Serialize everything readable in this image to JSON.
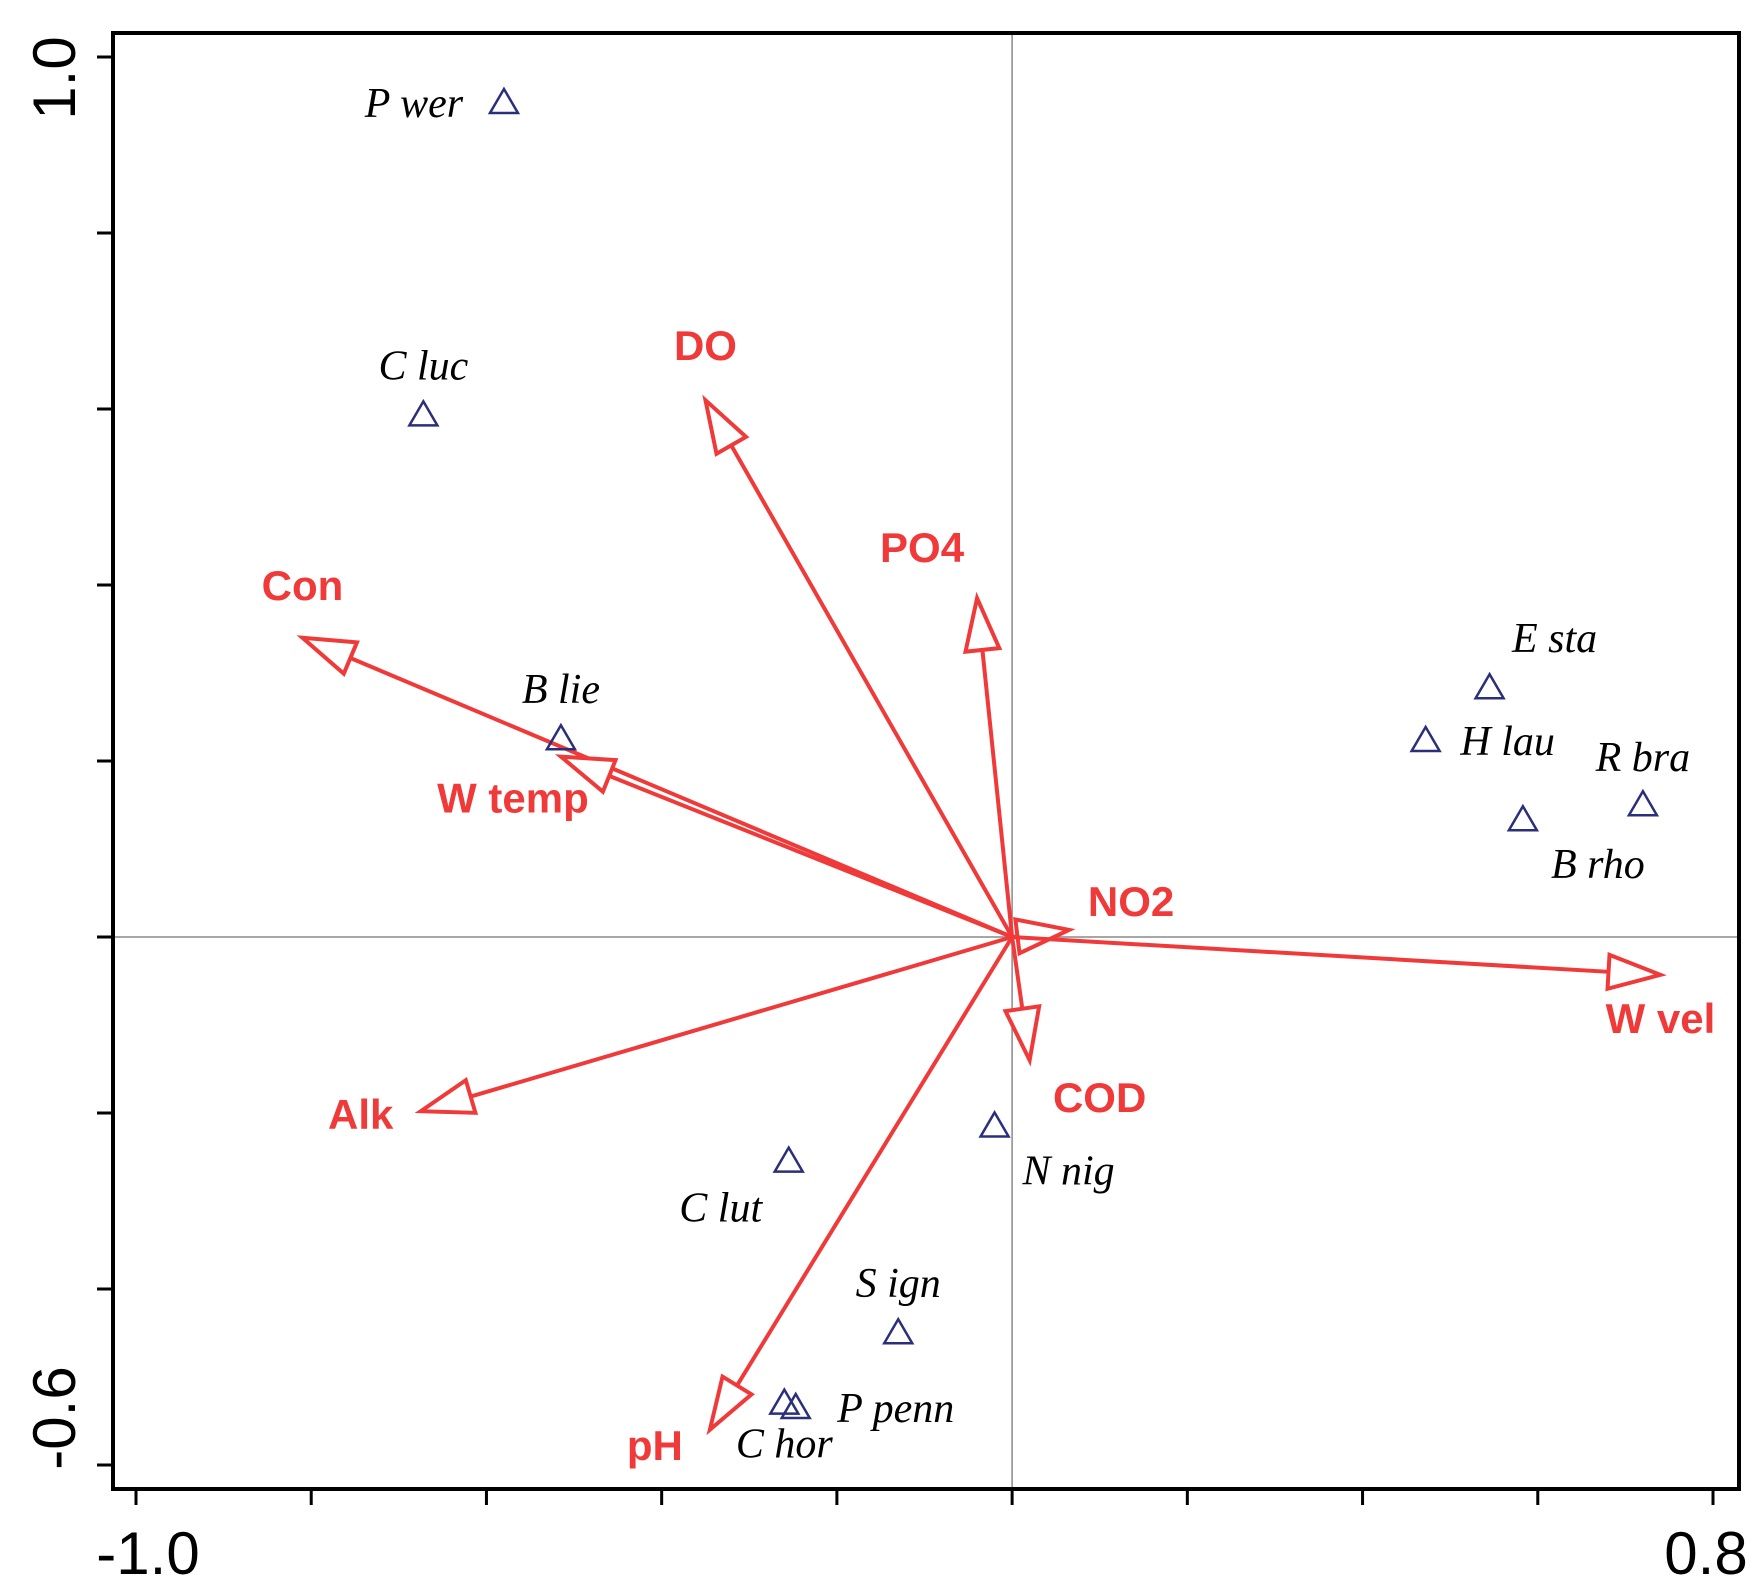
{
  "chart_data": {
    "type": "scatter",
    "subtype": "ordination-biplot",
    "title": "",
    "xlabel": "",
    "ylabel": "",
    "xlim": [
      -1.0,
      0.8
    ],
    "ylim": [
      -0.6,
      1.0
    ],
    "x_tick_labels": [
      "-1.0",
      "0.8"
    ],
    "y_tick_labels": [
      "-0.6",
      "1.0"
    ],
    "species": [
      {
        "name": "P wer",
        "x": -0.58,
        "y": 0.95
      },
      {
        "name": "C luc",
        "x": -0.672,
        "y": 0.595
      },
      {
        "name": "B lie",
        "x": -0.515,
        "y": 0.227
      },
      {
        "name": "E sta",
        "x": 0.545,
        "y": 0.285
      },
      {
        "name": "H lau",
        "x": 0.472,
        "y": 0.225
      },
      {
        "name": "R bra",
        "x": 0.72,
        "y": 0.152
      },
      {
        "name": "B rho",
        "x": 0.583,
        "y": 0.135
      },
      {
        "name": "N nig",
        "x": -0.02,
        "y": -0.213
      },
      {
        "name": "C lut",
        "x": -0.255,
        "y": -0.253
      },
      {
        "name": "S ign",
        "x": -0.13,
        "y": -0.448
      },
      {
        "name": "P penn",
        "x": -0.247,
        "y": -0.533
      },
      {
        "name": "C hor",
        "x": -0.26,
        "y": -0.528
      }
    ],
    "environment_vectors": [
      {
        "name": "DO",
        "x": -0.35,
        "y": 0.61
      },
      {
        "name": "PO4",
        "x": -0.04,
        "y": 0.385
      },
      {
        "name": "Con",
        "x": -0.81,
        "y": 0.34
      },
      {
        "name": "W temp",
        "x": -0.515,
        "y": 0.205
      },
      {
        "name": "NO2",
        "x": 0.065,
        "y": 0.008
      },
      {
        "name": "W vel",
        "x": 0.74,
        "y": -0.043
      },
      {
        "name": "COD",
        "x": 0.02,
        "y": -0.14
      },
      {
        "name": "Alk",
        "x": -0.675,
        "y": -0.198
      },
      {
        "name": "pH",
        "x": -0.345,
        "y": -0.56
      }
    ]
  },
  "colors": {
    "vector": "#f03a3a",
    "species_marker": "#2b2f7a",
    "axis": "#000000",
    "zero_line": "#8a8a8a"
  }
}
